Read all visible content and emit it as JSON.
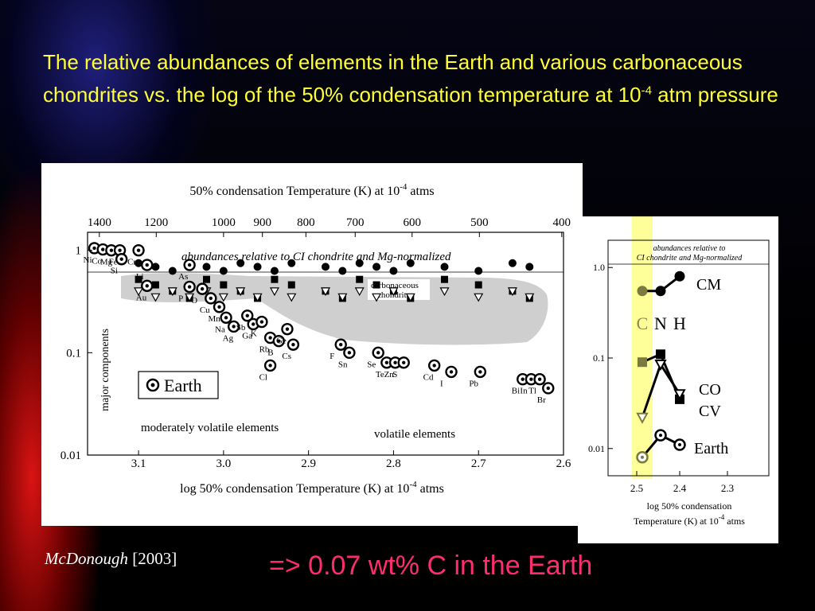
{
  "slide": {
    "title_main": "The relative abundances of elements in the Earth and various carbonaceous chondrites vs. the log of the 50% condensation temperature at 10",
    "title_sup": "-4",
    "title_end": " atm pressure",
    "citation_author": "McDonough",
    "citation_year": "[2003]",
    "conclusion": "=> 0.07 wt% C in the Earth"
  },
  "chart_data": [
    {
      "type": "scatter",
      "top_axis_label": "50% condensation Temperature (K) at 10",
      "top_axis_sup": "-4",
      "top_axis_end": " atms",
      "top_ticks": [
        "1400",
        "1200",
        "1000",
        "900",
        "800",
        "700",
        "600",
        "500",
        "400"
      ],
      "xlabel": "log 50% condensation Temperature (K) at 10",
      "xlabel_sup": "-4",
      "xlabel_end": " atms",
      "x_ticks": [
        "3.1",
        "3.0",
        "2.9",
        "2.8",
        "2.7",
        "2.6"
      ],
      "xlim": [
        3.16,
        2.6
      ],
      "ylim": [
        0.01,
        1.5
      ],
      "y_scale": "log",
      "y_ticks": [
        "1",
        "0.1",
        "0.01"
      ],
      "ylabel": "major components",
      "annotation_top": "abundances relative to CI chondrite and Mg-normalized",
      "annotation_band": "carbonaceous chondrites",
      "annotation_left": "moderately volatile elements",
      "annotation_right": "volatile elements",
      "legend": "Earth",
      "earth_points": [
        {
          "el": "Ni",
          "x": 3.152,
          "y": 1.05
        },
        {
          "el": "Co",
          "x": 3.142,
          "y": 1.02
        },
        {
          "el": "Mg",
          "x": 3.132,
          "y": 1.0
        },
        {
          "el": "Fe",
          "x": 3.122,
          "y": 1.0
        },
        {
          "el": "Cr",
          "x": 3.1,
          "y": 1.0
        },
        {
          "el": "Si",
          "x": 3.12,
          "y": 0.82
        },
        {
          "el": "Li",
          "x": 3.09,
          "y": 0.72
        },
        {
          "el": "Au",
          "x": 3.09,
          "y": 0.45
        },
        {
          "el": "As",
          "x": 3.04,
          "y": 0.72
        },
        {
          "el": "P",
          "x": 3.04,
          "y": 0.44
        },
        {
          "el": "O",
          "x": 3.025,
          "y": 0.42
        },
        {
          "el": "Cu",
          "x": 3.015,
          "y": 0.34
        },
        {
          "el": "Mn",
          "x": 3.005,
          "y": 0.28
        },
        {
          "el": "Na",
          "x": 2.997,
          "y": 0.22
        },
        {
          "el": "Ag",
          "x": 2.988,
          "y": 0.18
        },
        {
          "el": "Sb",
          "x": 2.972,
          "y": 0.23
        },
        {
          "el": "Ga",
          "x": 2.965,
          "y": 0.19
        },
        {
          "el": "K",
          "x": 2.955,
          "y": 0.2
        },
        {
          "el": "Rb",
          "x": 2.945,
          "y": 0.14
        },
        {
          "el": "B",
          "x": 2.935,
          "y": 0.13
        },
        {
          "el": "Cl",
          "x": 2.945,
          "y": 0.075
        },
        {
          "el": "Ge",
          "x": 2.925,
          "y": 0.17
        },
        {
          "el": "Cs",
          "x": 2.918,
          "y": 0.12
        },
        {
          "el": "F",
          "x": 2.862,
          "y": 0.12
        },
        {
          "el": "Sn",
          "x": 2.852,
          "y": 0.1
        },
        {
          "el": "Se",
          "x": 2.818,
          "y": 0.1
        },
        {
          "el": "Te",
          "x": 2.808,
          "y": 0.08
        },
        {
          "el": "Zn",
          "x": 2.798,
          "y": 0.08
        },
        {
          "el": "S",
          "x": 2.788,
          "y": 0.08
        },
        {
          "el": "Cd",
          "x": 2.752,
          "y": 0.075
        },
        {
          "el": "I",
          "x": 2.732,
          "y": 0.065
        },
        {
          "el": "Pb",
          "x": 2.698,
          "y": 0.065
        },
        {
          "el": "Bi",
          "x": 2.648,
          "y": 0.055
        },
        {
          "el": "In",
          "x": 2.638,
          "y": 0.055
        },
        {
          "el": "Tl",
          "x": 2.628,
          "y": 0.055
        },
        {
          "el": "Br",
          "x": 2.618,
          "y": 0.045
        }
      ]
    },
    {
      "type": "line",
      "annotation": "abundances relative to CI chondrite and Mg-normalized",
      "xlabel_line1": "log 50% condensation",
      "xlabel_line2": "Temperature (K) at 10",
      "xlabel_sup": "-4",
      "xlabel_end": " atms",
      "x_ticks": [
        "2.5",
        "2.4",
        "2.3"
      ],
      "y_ticks": [
        "1.0",
        "0.1",
        "0.01"
      ],
      "ylim": [
        0.005,
        2.0
      ],
      "y_scale": "log",
      "x_categories": [
        "C",
        "N",
        "H"
      ],
      "highlight_color": "#ffff99",
      "series": [
        {
          "name": "CM",
          "values": [
            0.55,
            0.55,
            0.8
          ]
        },
        {
          "name": "CO",
          "values": [
            0.09,
            0.11,
            0.035
          ]
        },
        {
          "name": "CV",
          "values": [
            0.022,
            0.085,
            0.04
          ]
        },
        {
          "name": "Earth",
          "values": [
            0.008,
            0.014,
            0.011
          ]
        }
      ],
      "label_co": "CO",
      "label_cv": "CV"
    }
  ]
}
